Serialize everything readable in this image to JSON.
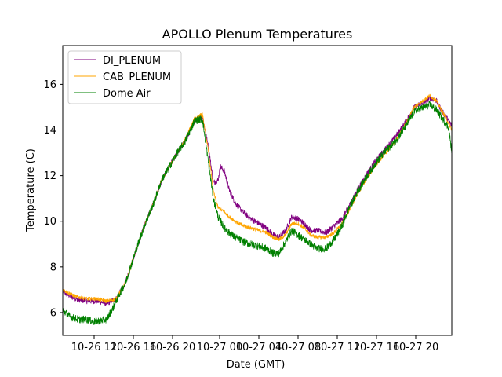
{
  "chart_data": {
    "type": "line",
    "title": "APOLLO Plenum Temperatures",
    "xlabel": "Date (GMT)",
    "ylabel": "Temperature (C)",
    "xlim": [
      0,
      24.8
    ],
    "ylim": [
      5.0,
      17.7
    ],
    "grid": false,
    "legend_position": "top-left",
    "x_unit": "hours since 10-26 10:00 GMT",
    "x_ticks": [
      {
        "x": 2,
        "label": "10-26 12"
      },
      {
        "x": 4.5,
        "label": "10-26 16"
      },
      {
        "x": 7,
        "label": "10-26 20"
      },
      {
        "x": 10,
        "label": "10-27 00"
      },
      {
        "x": 12.5,
        "label": "10-27 04"
      },
      {
        "x": 15,
        "label": "10-27 08"
      },
      {
        "x": 17.5,
        "label": "10-27 12"
      },
      {
        "x": 20,
        "label": "10-27 16"
      },
      {
        "x": 22.5,
        "label": "10-27 20"
      }
    ],
    "y_ticks": [
      {
        "y": 6,
        "label": "6"
      },
      {
        "y": 8,
        "label": "8"
      },
      {
        "y": 10,
        "label": "10"
      },
      {
        "y": 12,
        "label": "12"
      },
      {
        "y": 14,
        "label": "14"
      },
      {
        "y": 16,
        "label": "16"
      }
    ],
    "series": [
      {
        "name": "DI_PLENUM",
        "color": "#800080",
        "x": [
          0,
          0.8,
          1.5,
          2.2,
          2.8,
          3.4,
          4.0,
          4.6,
          5.2,
          5.8,
          6.3,
          6.8,
          7.3,
          7.8,
          8.4,
          8.9,
          9.3,
          9.6,
          9.9,
          10.05,
          10.3,
          10.6,
          11.0,
          11.5,
          12.0,
          12.5,
          13.0,
          13.4,
          13.8,
          14.2,
          14.6,
          15.0,
          15.4,
          15.8,
          16.2,
          16.8,
          17.3,
          17.8,
          18.2,
          18.8,
          19.4,
          20.0,
          20.6,
          21.2,
          21.8,
          22.4,
          23.0,
          23.4,
          23.8,
          24.2,
          24.6,
          24.8
        ],
        "y": [
          6.9,
          6.6,
          6.5,
          6.5,
          6.4,
          6.6,
          7.3,
          8.6,
          9.8,
          10.8,
          11.8,
          12.4,
          13.0,
          13.5,
          14.4,
          14.6,
          13.2,
          11.7,
          11.8,
          12.4,
          12.2,
          11.4,
          10.8,
          10.4,
          10.1,
          9.9,
          9.7,
          9.4,
          9.3,
          9.6,
          10.2,
          10.1,
          9.9,
          9.6,
          9.6,
          9.5,
          9.8,
          10.1,
          10.6,
          11.4,
          12.1,
          12.7,
          13.2,
          13.7,
          14.3,
          15.0,
          15.2,
          15.4,
          15.3,
          14.8,
          14.4,
          14.2
        ]
      },
      {
        "name": "CAB_PLENUM",
        "color": "#ffa500",
        "x": [
          0,
          0.8,
          1.5,
          2.2,
          2.8,
          3.4,
          4.0,
          4.6,
          5.2,
          5.8,
          6.3,
          6.8,
          7.3,
          7.8,
          8.4,
          8.9,
          9.3,
          9.6,
          9.9,
          10.3,
          10.6,
          11.0,
          11.5,
          12.0,
          12.5,
          13.0,
          13.4,
          13.8,
          14.2,
          14.6,
          15.0,
          15.4,
          15.8,
          16.2,
          16.8,
          17.3,
          17.8,
          18.2,
          18.8,
          19.4,
          20.0,
          20.6,
          21.2,
          21.8,
          22.4,
          23.0,
          23.4,
          23.8,
          24.2,
          24.6,
          24.8
        ],
        "y": [
          7.0,
          6.7,
          6.6,
          6.6,
          6.5,
          6.6,
          7.3,
          8.6,
          9.8,
          10.8,
          11.8,
          12.4,
          13.0,
          13.6,
          14.5,
          14.7,
          13.0,
          11.3,
          10.6,
          10.4,
          10.2,
          10.0,
          9.8,
          9.7,
          9.6,
          9.5,
          9.3,
          9.2,
          9.4,
          9.9,
          9.9,
          9.7,
          9.4,
          9.3,
          9.3,
          9.5,
          9.9,
          10.4,
          11.2,
          11.9,
          12.5,
          13.0,
          13.5,
          14.2,
          15.0,
          15.3,
          15.5,
          15.3,
          14.8,
          14.3,
          14.0
        ]
      },
      {
        "name": "Dome Air",
        "color": "#008000",
        "x": [
          0,
          0.5,
          1.0,
          1.5,
          2.0,
          2.4,
          2.8,
          3.2,
          3.6,
          4.0,
          4.6,
          5.2,
          5.8,
          6.3,
          6.8,
          7.3,
          7.8,
          8.4,
          8.9,
          9.3,
          9.6,
          9.9,
          10.3,
          10.6,
          11.0,
          11.5,
          12.0,
          12.5,
          13.0,
          13.4,
          13.8,
          14.2,
          14.6,
          15.0,
          15.4,
          15.8,
          16.2,
          16.8,
          17.3,
          17.8,
          18.2,
          18.8,
          19.4,
          20.0,
          20.6,
          21.2,
          21.8,
          22.4,
          23.0,
          23.4,
          23.8,
          24.2,
          24.6,
          24.8
        ],
        "y": [
          6.1,
          5.8,
          5.7,
          5.7,
          5.6,
          5.65,
          5.7,
          6.2,
          6.8,
          7.3,
          8.6,
          9.8,
          10.8,
          11.8,
          12.4,
          13.0,
          13.5,
          14.4,
          14.5,
          12.5,
          11.0,
          10.2,
          9.7,
          9.5,
          9.3,
          9.1,
          9.0,
          8.9,
          8.8,
          8.6,
          8.6,
          9.1,
          9.6,
          9.4,
          9.2,
          9.0,
          8.8,
          8.8,
          9.2,
          9.8,
          10.5,
          11.3,
          12.0,
          12.6,
          13.1,
          13.5,
          14.1,
          14.8,
          15.0,
          15.1,
          14.9,
          14.5,
          14.1,
          13.0
        ]
      }
    ]
  }
}
